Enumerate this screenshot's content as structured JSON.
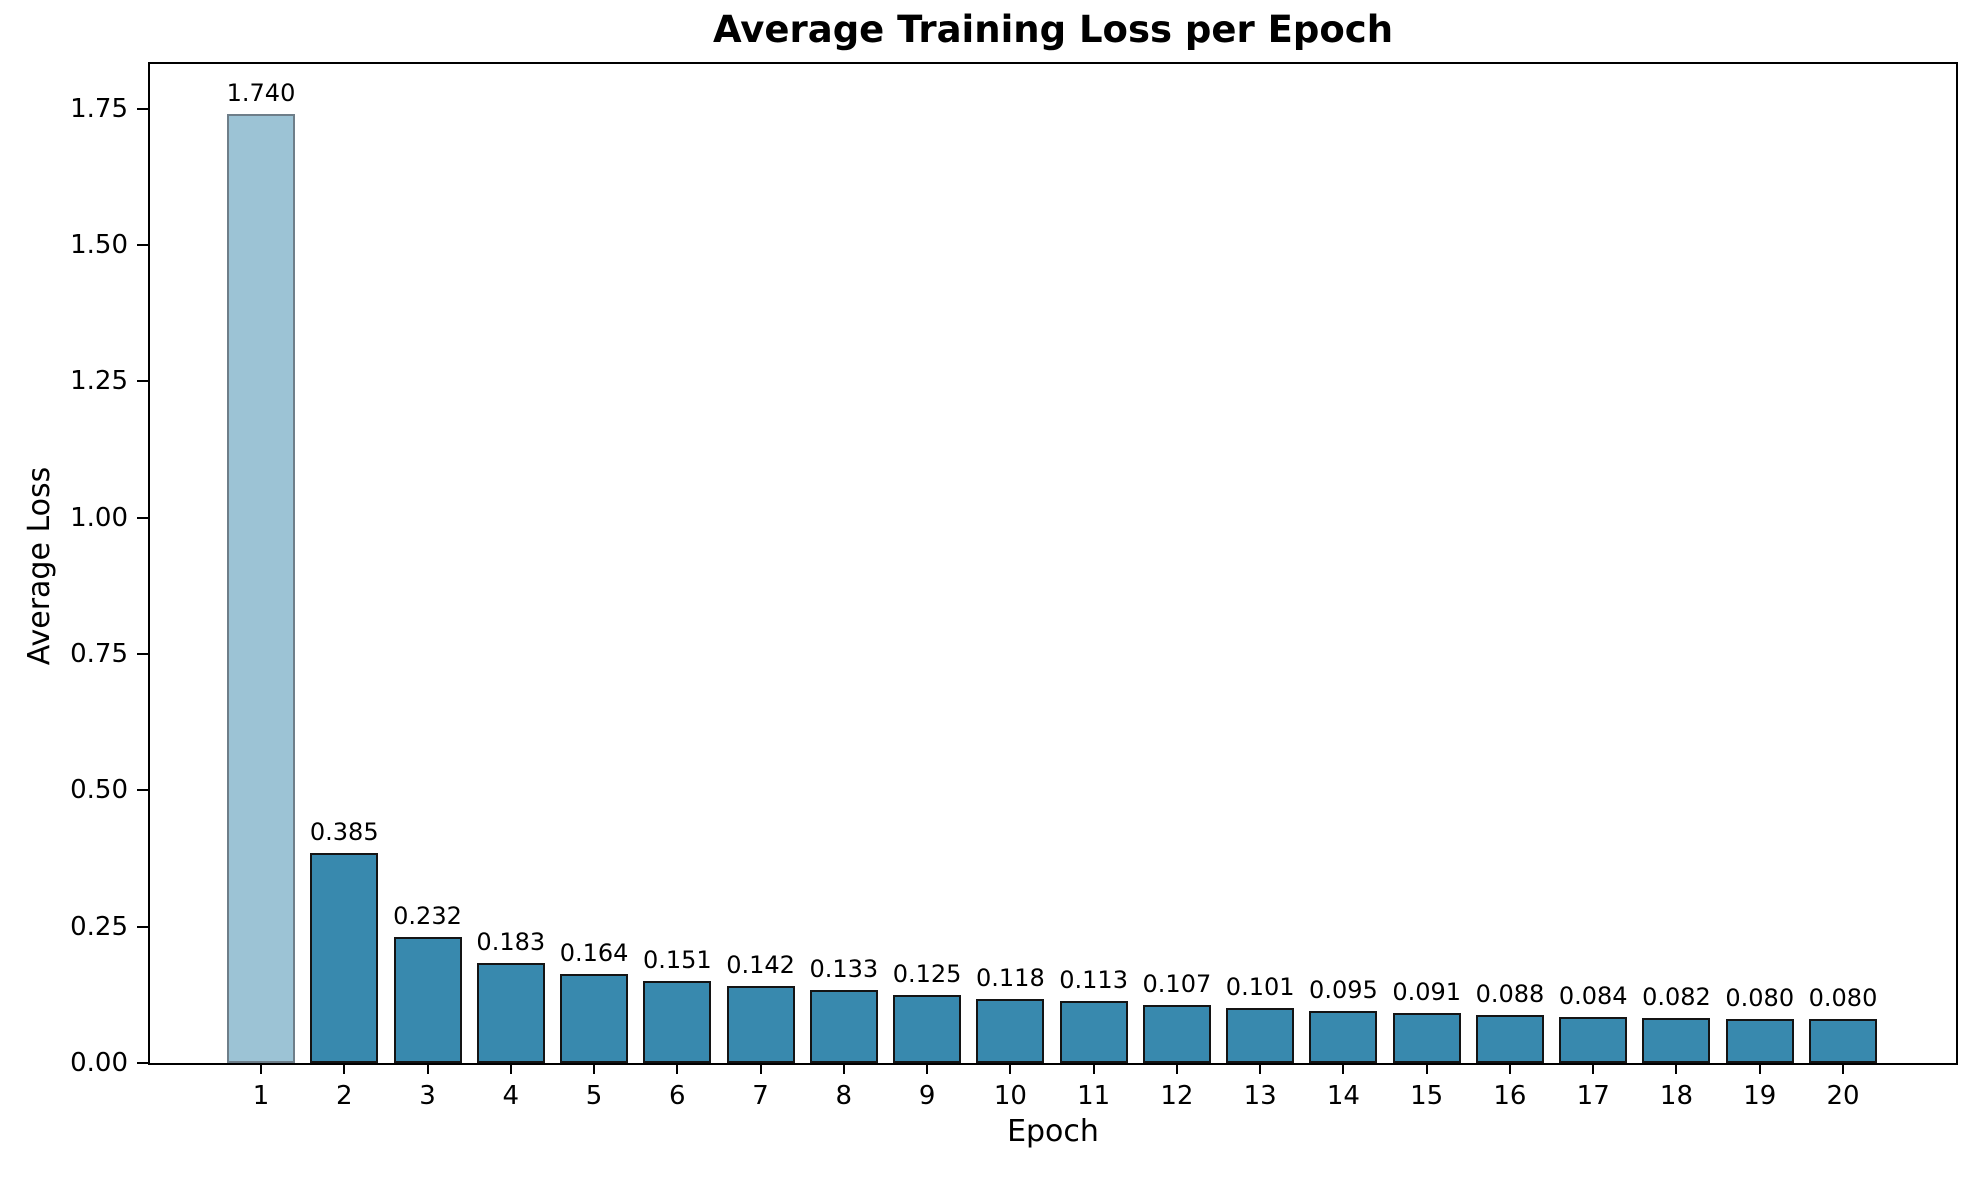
{
  "chart_data": {
    "type": "bar",
    "title": "Average Training Loss per Epoch",
    "xlabel": "Epoch",
    "ylabel": "Average Loss",
    "categories": [
      "1",
      "2",
      "3",
      "4",
      "5",
      "6",
      "7",
      "8",
      "9",
      "10",
      "11",
      "12",
      "13",
      "14",
      "15",
      "16",
      "17",
      "18",
      "19",
      "20"
    ],
    "values": [
      1.74,
      0.385,
      0.232,
      0.183,
      0.164,
      0.151,
      0.142,
      0.133,
      0.125,
      0.118,
      0.113,
      0.107,
      0.101,
      0.095,
      0.091,
      0.088,
      0.084,
      0.082,
      0.08,
      0.08
    ],
    "bar_labels": [
      "1.740",
      "0.385",
      "0.232",
      "0.183",
      "0.164",
      "0.151",
      "0.142",
      "0.133",
      "0.125",
      "0.118",
      "0.113",
      "0.107",
      "0.101",
      "0.095",
      "0.091",
      "0.088",
      "0.084",
      "0.082",
      "0.080",
      "0.080"
    ],
    "yticks": [
      0.0,
      0.25,
      0.5,
      0.75,
      1.0,
      1.25,
      1.5,
      1.75
    ],
    "ytick_labels": [
      "0.00",
      "0.25",
      "0.50",
      "0.75",
      "1.00",
      "1.25",
      "1.50",
      "1.75"
    ],
    "ylim": [
      0,
      1.832
    ],
    "grid": false,
    "legend": null,
    "colors": {
      "highlight_bar_fill": "#9cc3d5",
      "highlight_bar_edge": "#6e7e89",
      "bar_fill": "#3889ae",
      "bar_edge": "#141414",
      "axis": "#000000",
      "background": "#ffffff",
      "text": "#000000"
    }
  }
}
